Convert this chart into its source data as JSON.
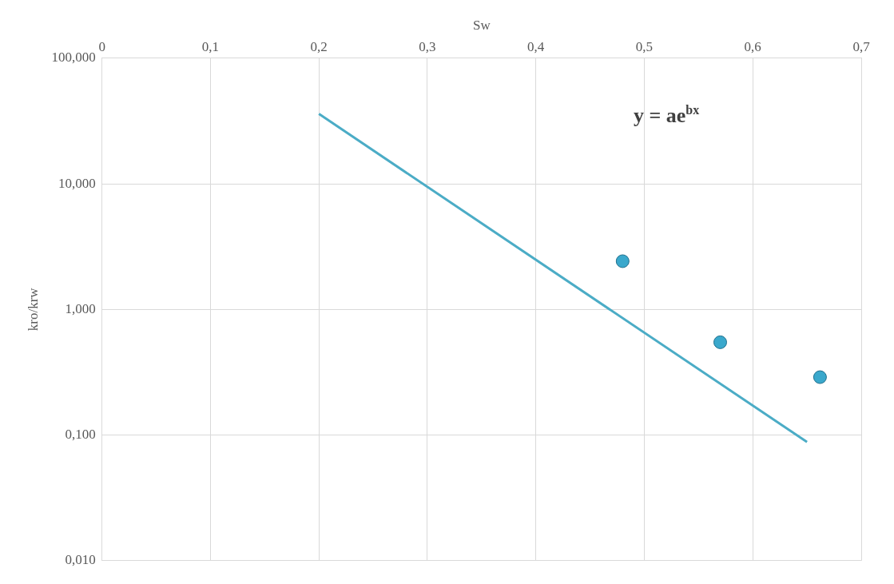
{
  "chart_data": {
    "type": "scatter",
    "xlabel": "Sw",
    "ylabel": "kro/krw",
    "log": "y",
    "grid": true,
    "legend": false,
    "marker": "circle",
    "xlim": [
      0,
      0.7
    ],
    "xticks": [
      {
        "value": 0,
        "label": "0"
      },
      {
        "value": 0.1,
        "label": "0,1"
      },
      {
        "value": 0.2,
        "label": "0,2"
      },
      {
        "value": 0.3,
        "label": "0,3"
      },
      {
        "value": 0.4,
        "label": "0,4"
      },
      {
        "value": 0.5,
        "label": "0,5"
      },
      {
        "value": 0.6,
        "label": "0,6"
      },
      {
        "value": 0.7,
        "label": "0,7"
      }
    ],
    "ylim": [
      0.01,
      100
    ],
    "yticks": [
      {
        "value": 0.01,
        "label": "0,010"
      },
      {
        "value": 0.1,
        "label": "0,100"
      },
      {
        "value": 1,
        "label": "1,000"
      },
      {
        "value": 10,
        "label": "10,000"
      },
      {
        "value": 100,
        "label": "100,000"
      }
    ],
    "series": [
      {
        "type": "scatter",
        "color": "#3aa8cc",
        "x": [
          0.48,
          0.57,
          0.662
        ],
        "values": [
          2.42,
          0.548,
          0.289
        ]
      },
      {
        "type": "line",
        "color": "#4bacc6",
        "marker": "none",
        "x": [
          0.2,
          0.65
        ],
        "values": [
          36,
          0.088
        ]
      }
    ],
    "annotations": [
      "y = ae$^{bx}$"
    ]
  }
}
